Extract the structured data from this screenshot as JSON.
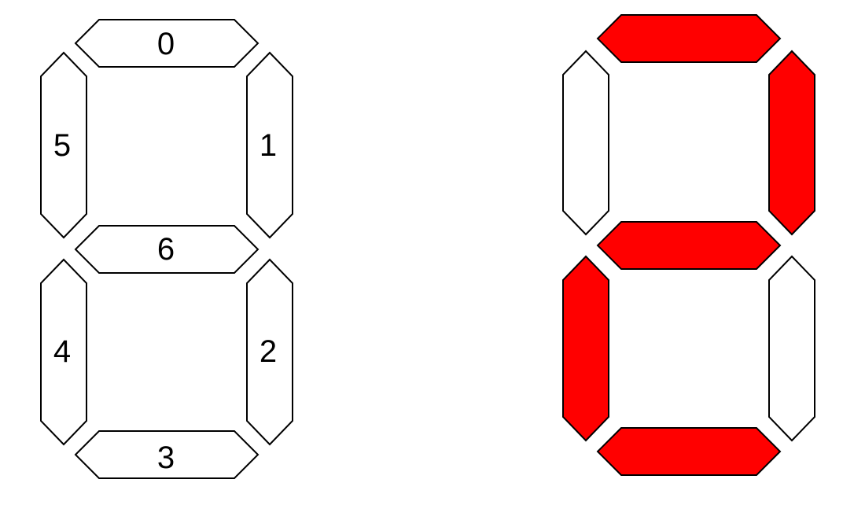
{
  "legend_display": {
    "segments": [
      {
        "id": 0,
        "label": "0"
      },
      {
        "id": 1,
        "label": "1"
      },
      {
        "id": 2,
        "label": "2"
      },
      {
        "id": 3,
        "label": "3"
      },
      {
        "id": 4,
        "label": "4"
      },
      {
        "id": 5,
        "label": "5"
      },
      {
        "id": 6,
        "label": "6"
      }
    ]
  },
  "lit_display": {
    "lit_segments": [
      0,
      1,
      6,
      4,
      3
    ],
    "unlit_segments": [
      5,
      2
    ]
  },
  "colors": {
    "lit_fill": "#ff0000",
    "unlit_fill": "#ffffff",
    "outline": "#000000"
  }
}
